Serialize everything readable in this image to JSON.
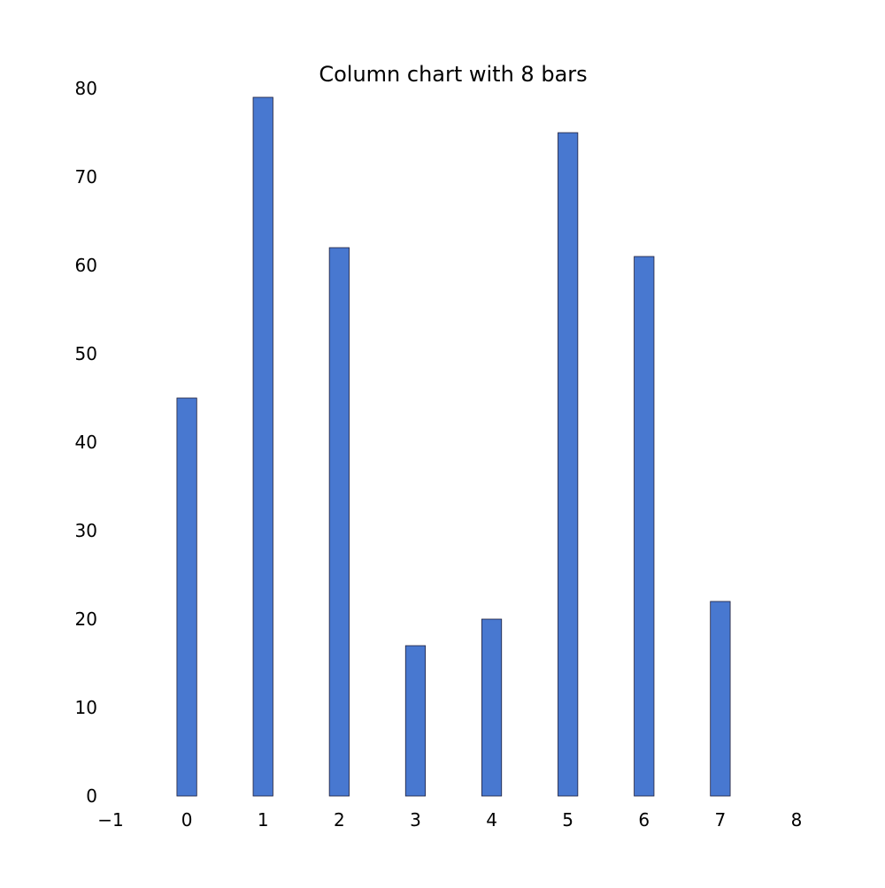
{
  "chart_data": {
    "type": "bar",
    "title": "Column chart with 8 bars",
    "categories": [
      0,
      1,
      2,
      3,
      4,
      5,
      6,
      7
    ],
    "values": [
      45,
      79,
      62,
      17,
      20,
      75,
      61,
      22
    ],
    "xlim": [
      -1,
      8
    ],
    "ylim": [
      0,
      80
    ],
    "x_ticks": [
      -1,
      0,
      1,
      2,
      3,
      4,
      5,
      6,
      7,
      8
    ],
    "x_tick_labels": [
      "−1",
      "0",
      "1",
      "2",
      "3",
      "4",
      "5",
      "6",
      "7",
      "8"
    ],
    "y_ticks": [
      0,
      10,
      20,
      30,
      40,
      50,
      60,
      70,
      80
    ],
    "y_tick_labels": [
      "0",
      "10",
      "20",
      "30",
      "40",
      "50",
      "60",
      "70",
      "80"
    ],
    "bar_width": 0.26,
    "grid": false,
    "legend": "none",
    "xlabel": "",
    "ylabel": "",
    "colors": {
      "bar_fill": "#4878d0",
      "bar_edge": "#1f1f3a",
      "background": "#ffffff",
      "text": "#000000"
    }
  }
}
